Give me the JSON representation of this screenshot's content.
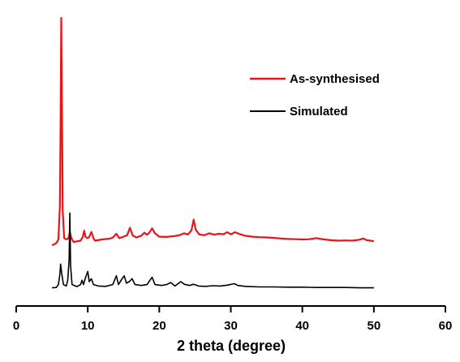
{
  "chart_data": {
    "type": "line",
    "title": "",
    "xlabel": "2 theta (degree)",
    "ylabel": "",
    "xlim": [
      0,
      60
    ],
    "ylim": [
      0,
      100
    ],
    "xticks": [
      0,
      10,
      20,
      30,
      40,
      50,
      60
    ],
    "grid": false,
    "y_axis_visible": false,
    "legend_position": "top-right",
    "series": [
      {
        "name": "As-synthesised",
        "color": "#e8141b",
        "points": [
          [
            5.0,
            8.2
          ],
          [
            5.3,
            8.5
          ],
          [
            5.6,
            9.0
          ],
          [
            5.9,
            10.5
          ],
          [
            6.1,
            24
          ],
          [
            6.2,
            58
          ],
          [
            6.3,
            100
          ],
          [
            6.4,
            62
          ],
          [
            6.5,
            22
          ],
          [
            6.7,
            11
          ],
          [
            7.0,
            10.5
          ],
          [
            7.3,
            11
          ],
          [
            7.5,
            13.5
          ],
          [
            7.7,
            11
          ],
          [
            8.0,
            9.5
          ],
          [
            8.5,
            9.7
          ],
          [
            9.0,
            10
          ],
          [
            9.3,
            11.5
          ],
          [
            9.5,
            14
          ],
          [
            9.7,
            11.5
          ],
          [
            10.0,
            11
          ],
          [
            10.2,
            11.5
          ],
          [
            10.5,
            13.5
          ],
          [
            10.8,
            11
          ],
          [
            11.0,
            10
          ],
          [
            12.0,
            10.5
          ],
          [
            13.0,
            10.8
          ],
          [
            13.5,
            11.2
          ],
          [
            14.0,
            12.8
          ],
          [
            14.4,
            11
          ],
          [
            15.0,
            11.6
          ],
          [
            15.5,
            12.2
          ],
          [
            15.9,
            15.2
          ],
          [
            16.3,
            12
          ],
          [
            16.8,
            11.3
          ],
          [
            17.5,
            12
          ],
          [
            17.9,
            13.2
          ],
          [
            18.3,
            12.4
          ],
          [
            18.6,
            13.2
          ],
          [
            19.0,
            15
          ],
          [
            19.4,
            13
          ],
          [
            20.0,
            11.6
          ],
          [
            21.0,
            11.5
          ],
          [
            22.0,
            11.8
          ],
          [
            22.8,
            12.2
          ],
          [
            23.5,
            13
          ],
          [
            24.0,
            12.5
          ],
          [
            24.5,
            14.2
          ],
          [
            24.8,
            18.5
          ],
          [
            25.1,
            14.4
          ],
          [
            25.6,
            12.5
          ],
          [
            26.3,
            12.2
          ],
          [
            27.0,
            13
          ],
          [
            27.7,
            12.4
          ],
          [
            28.3,
            12.8
          ],
          [
            29.0,
            12.6
          ],
          [
            29.5,
            13.4
          ],
          [
            30.0,
            12.6
          ],
          [
            30.6,
            13.4
          ],
          [
            31.3,
            12.6
          ],
          [
            32.0,
            12
          ],
          [
            33.0,
            11.6
          ],
          [
            34.0,
            11.4
          ],
          [
            35.0,
            11.3
          ],
          [
            36.0,
            11.1
          ],
          [
            37.0,
            10.9
          ],
          [
            38.0,
            10.7
          ],
          [
            39.0,
            10.6
          ],
          [
            40.0,
            10.5
          ],
          [
            41.0,
            10.6
          ],
          [
            42.0,
            11
          ],
          [
            43.0,
            10.5
          ],
          [
            44.0,
            10.2
          ],
          [
            45.0,
            10
          ],
          [
            46.0,
            10.1
          ],
          [
            47.0,
            10
          ],
          [
            48.0,
            10.4
          ],
          [
            48.5,
            10.9
          ],
          [
            49.0,
            10.2
          ],
          [
            50.0,
            9.8
          ]
        ]
      },
      {
        "name": "Simulated",
        "color": "#000000",
        "points": [
          [
            5.0,
            0.4
          ],
          [
            5.6,
            0.5
          ],
          [
            5.9,
            1.5
          ],
          [
            6.1,
            5
          ],
          [
            6.2,
            8.5
          ],
          [
            6.35,
            5.5
          ],
          [
            6.6,
            1.5
          ],
          [
            7.0,
            1
          ],
          [
            7.2,
            3
          ],
          [
            7.4,
            10
          ],
          [
            7.5,
            26
          ],
          [
            7.6,
            8
          ],
          [
            7.8,
            1.5
          ],
          [
            8.5,
            0.8
          ],
          [
            9.0,
            1.5
          ],
          [
            9.2,
            3
          ],
          [
            9.4,
            1.5
          ],
          [
            9.7,
            4
          ],
          [
            10.0,
            6
          ],
          [
            10.2,
            2.5
          ],
          [
            10.5,
            3.5
          ],
          [
            10.8,
            1.5
          ],
          [
            11.5,
            1
          ],
          [
            12.5,
            0.9
          ],
          [
            13.5,
            1.5
          ],
          [
            14.0,
            4.5
          ],
          [
            14.3,
            1.5
          ],
          [
            14.8,
            3.5
          ],
          [
            15.1,
            4.5
          ],
          [
            15.4,
            2
          ],
          [
            15.8,
            2.5
          ],
          [
            16.2,
            3.5
          ],
          [
            16.6,
            1.5
          ],
          [
            17.5,
            1.2
          ],
          [
            18.3,
            1.5
          ],
          [
            18.7,
            3
          ],
          [
            19.0,
            4
          ],
          [
            19.4,
            1.5
          ],
          [
            20.3,
            1.2
          ],
          [
            21.0,
            1.5
          ],
          [
            21.6,
            2.2
          ],
          [
            22.2,
            1
          ],
          [
            23.0,
            2.5
          ],
          [
            23.5,
            1.6
          ],
          [
            24.2,
            1.2
          ],
          [
            24.8,
            1.6
          ],
          [
            25.5,
            1
          ],
          [
            26.5,
            0.9
          ],
          [
            27.5,
            1.1
          ],
          [
            28.5,
            1
          ],
          [
            29.5,
            1.3
          ],
          [
            30.5,
            1.8
          ],
          [
            31.0,
            1.2
          ],
          [
            32.0,
            0.9
          ],
          [
            34.0,
            0.7
          ],
          [
            36.0,
            0.7
          ],
          [
            38.0,
            0.6
          ],
          [
            40.0,
            0.6
          ],
          [
            42.0,
            0.5
          ],
          [
            44.0,
            0.5
          ],
          [
            46.0,
            0.5
          ],
          [
            48.0,
            0.4
          ],
          [
            50.0,
            0.4
          ]
        ]
      }
    ]
  }
}
